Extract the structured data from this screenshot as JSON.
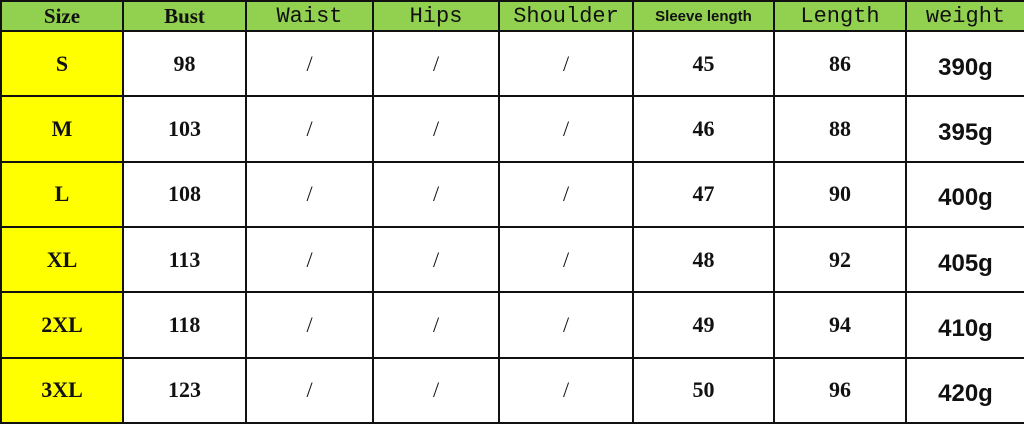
{
  "table": {
    "header": [
      "Size",
      "Bust",
      "Waist",
      "Hips",
      "Shoulder",
      "Sleeve length",
      "Length",
      "weight"
    ],
    "rows": [
      [
        "S",
        "98",
        "/",
        "/",
        "/",
        "45",
        "86",
        "390g"
      ],
      [
        "M",
        "103",
        "/",
        "/",
        "/",
        "46",
        "88",
        "395g"
      ],
      [
        "L",
        "108",
        "/",
        "/",
        "/",
        "47",
        "90",
        "400g"
      ],
      [
        "XL",
        "113",
        "/",
        "/",
        "/",
        "48",
        "92",
        "405g"
      ],
      [
        "2XL",
        "118",
        "/",
        "/",
        "/",
        "49",
        "94",
        "410g"
      ],
      [
        "3XL",
        "123",
        "/",
        "/",
        "/",
        "50",
        "96",
        "420g"
      ]
    ]
  }
}
